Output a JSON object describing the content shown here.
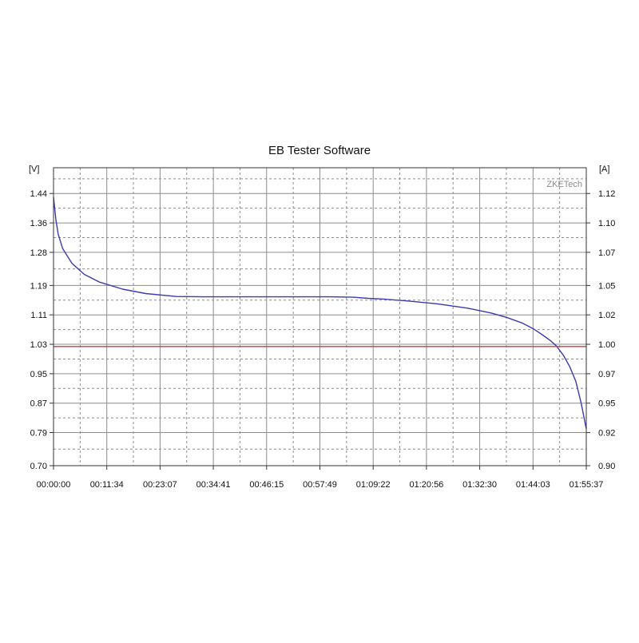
{
  "chart_data": {
    "type": "line",
    "title": "EB Tester Software",
    "watermark": "ZKETech",
    "left_axis": {
      "unit": "[V]",
      "ylim": [
        0.7,
        1.51
      ],
      "ticks": [
        0.7,
        0.79,
        0.87,
        0.95,
        1.03,
        1.11,
        1.19,
        1.28,
        1.36,
        1.44
      ],
      "tick_labels": [
        "0.70",
        "0.79",
        "0.87",
        "0.95",
        "1.03",
        "1.11",
        "1.19",
        "1.28",
        "1.36",
        "1.44"
      ]
    },
    "right_axis": {
      "unit": "[A]",
      "ylim": [
        0.9,
        1.15
      ],
      "ticks": [
        0.9,
        0.92,
        0.95,
        0.97,
        1.0,
        1.02,
        1.05,
        1.07,
        1.1,
        1.12
      ],
      "tick_labels": [
        "0.90",
        "0.92",
        "0.95",
        "0.97",
        "1.00",
        "1.02",
        "1.05",
        "1.07",
        "1.10",
        "1.12"
      ]
    },
    "x_axis": {
      "xlim_seconds": [
        0,
        6937
      ],
      "tick_labels": [
        "00:00:00",
        "00:11:34",
        "00:23:07",
        "00:34:41",
        "00:46:15",
        "00:57:49",
        "01:09:22",
        "01:20:56",
        "01:32:30",
        "01:44:03",
        "01:55:37"
      ]
    },
    "grid": true,
    "series": [
      {
        "color": "#3b3bb0",
        "axis": "left",
        "x_seconds": [
          0,
          30,
          60,
          120,
          240,
          400,
          600,
          900,
          1200,
          1600,
          2000,
          2400,
          2800,
          3200,
          3600,
          3900,
          4100,
          4300,
          4600,
          5000,
          5400,
          5700,
          5900,
          6100,
          6250,
          6370,
          6470,
          6550,
          6640,
          6720,
          6800,
          6870,
          6937
        ],
        "values": [
          1.43,
          1.37,
          1.33,
          1.29,
          1.25,
          1.22,
          1.199,
          1.18,
          1.168,
          1.16,
          1.159,
          1.159,
          1.159,
          1.159,
          1.159,
          1.158,
          1.155,
          1.153,
          1.148,
          1.14,
          1.128,
          1.115,
          1.103,
          1.088,
          1.072,
          1.055,
          1.04,
          1.025,
          1.0,
          0.97,
          0.93,
          0.87,
          0.8
        ]
      },
      {
        "color": "#c83c3c",
        "axis": "right",
        "x_seconds": [
          0,
          6937
        ],
        "values": [
          1.0,
          1.0
        ]
      }
    ]
  }
}
